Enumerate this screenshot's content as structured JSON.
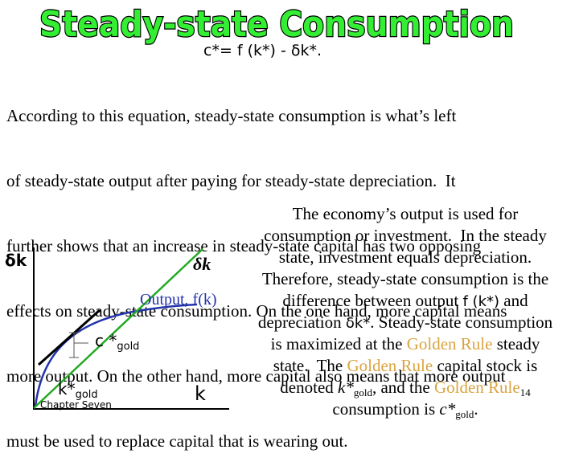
{
  "slide": {
    "title": "Steady-state Consumption",
    "formula": "c*= f (k*) - δk*.",
    "paragraph_lines": [
      "According to this equation, steady-state consumption is what’s left",
      "of steady-state output after paying for steady-state depreciation.  It",
      "further shows that an increase in steady-state capital has two opposing",
      "effects on steady-state consumption. On the one hand, more capital means",
      "more output. On the other hand, more capital also means that more output",
      "must be used to replace capital that is wearing out."
    ],
    "right_text": {
      "l1": "The economy’s output is used for",
      "l2": "consumption or investment.  In the steady",
      "l3": "state, investment equals depreciation.",
      "l4": "Therefore, steady-state consumption is the",
      "l5a": "difference between output ",
      "l5b": "f (k*)",
      "l5c": " and",
      "l6a": "depreciation ",
      "l6b": "δk*",
      "l6c": ". Steady-state consumption",
      "l7a": "is maximized at the ",
      "l7b": "Golden Rule",
      "l7c": " steady",
      "l8a": "state.  The ",
      "l8b": "Golden Rule",
      "l8c": " capital stock is",
      "l9a": "denoted ",
      "l9b": "k*",
      "l9c": "gold",
      "l9d": ", and the ",
      "l9e": "Golden Rule",
      "l10a": "consumption is ",
      "l10b": "c*",
      "l10c": "gold",
      "l10d": "."
    },
    "chapter_footer": "Chapter Seven",
    "page_number": "14"
  },
  "graph": {
    "y_axis_label": "δk",
    "depreciation_label": "δk",
    "output_label": "Output, f(k)",
    "c_star_label": "c *",
    "c_star_sub": "gold",
    "k_star_label": "k*",
    "k_star_sub": "gold",
    "x_axis_label": "k",
    "colors": {
      "output_curve": "#2233aa",
      "depreciation_line": "#22aa22",
      "tangent": "#000000",
      "gold_text": "#d9a441"
    }
  }
}
